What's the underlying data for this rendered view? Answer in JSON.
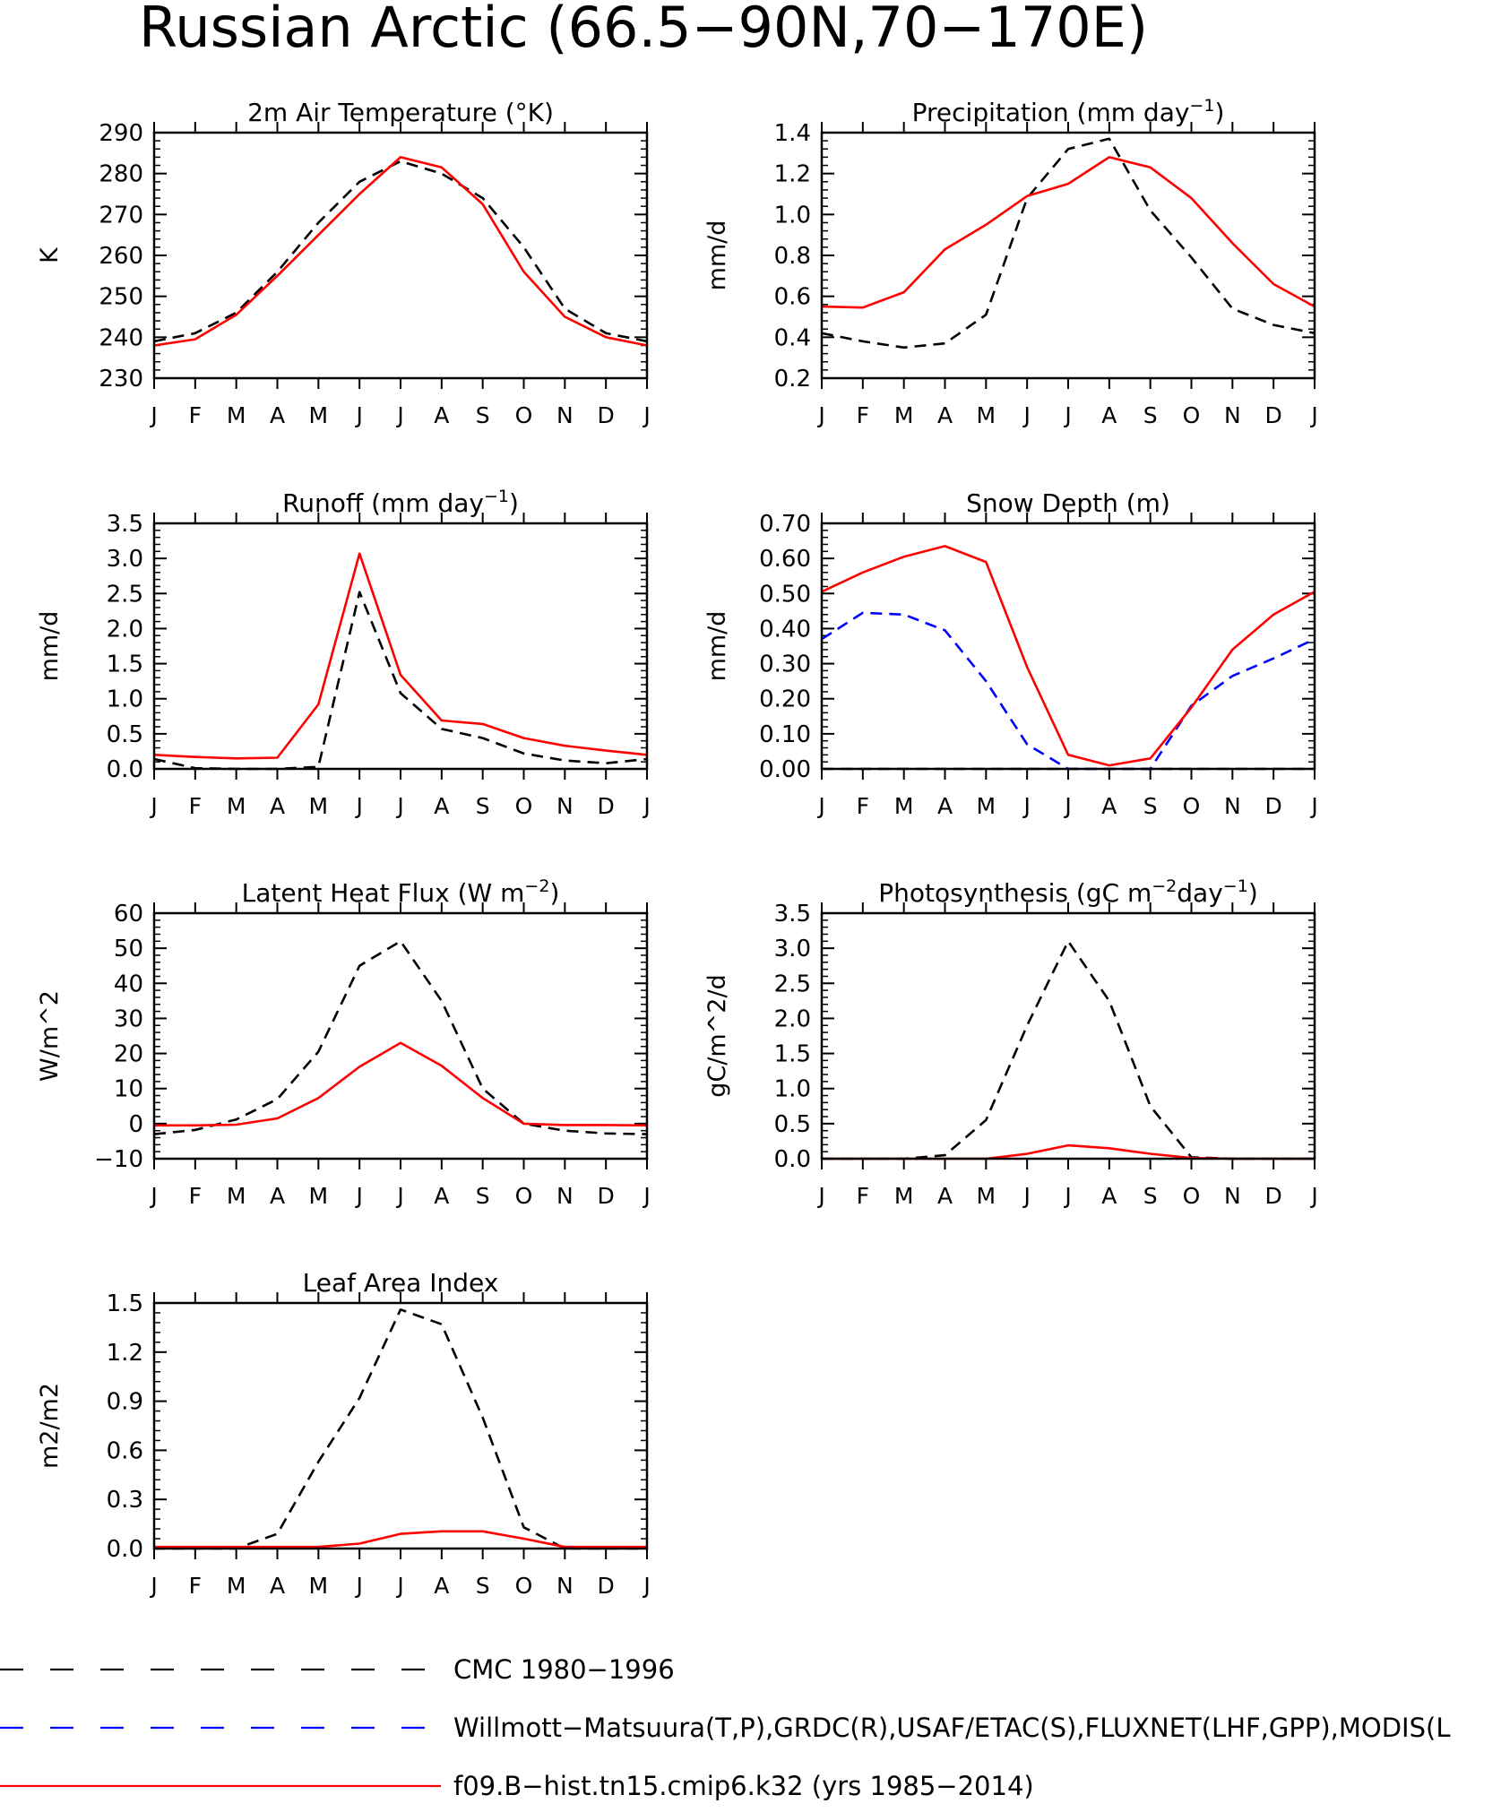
{
  "title": "Russian Arctic (66.5−90N,70−170E)",
  "months": [
    "J",
    "F",
    "M",
    "A",
    "M",
    "J",
    "J",
    "A",
    "S",
    "O",
    "N",
    "D",
    "J"
  ],
  "legend": [
    {
      "label": "CMC 1980−1996",
      "color": "#000000",
      "style": "dashed"
    },
    {
      "label": "Willmott−Matsuura(T,P),GRDC(R),USAF/ETAC(S),FLUXNET(LHF,GPP),MODIS(L",
      "color": "#0000ff",
      "style": "dashed"
    },
    {
      "label": "f09.B−hist.tn15.cmip6.k32 (yrs 1985−2014)",
      "color": "#ff0000",
      "style": "solid"
    }
  ],
  "chart_data": [
    {
      "type": "line",
      "title_main": "2m Air Temperature (°K)",
      "title_sup": "",
      "title_tail": "",
      "ylabel": "K",
      "ylim": [
        230,
        290
      ],
      "yticks": [
        230,
        240,
        250,
        260,
        270,
        280,
        290
      ],
      "ytick_labels": [
        "230",
        "240",
        "250",
        "260",
        "270",
        "280",
        "290"
      ],
      "x": [
        "J",
        "F",
        "M",
        "A",
        "M",
        "J",
        "J",
        "A",
        "S",
        "O",
        "N",
        "D",
        "J"
      ],
      "series": [
        {
          "legend_index": 0,
          "color": "#000000",
          "style": "dashed",
          "values": [
            239,
            241,
            246,
            256,
            268,
            278,
            283,
            280,
            274,
            262,
            247,
            241,
            239
          ]
        },
        {
          "legend_index": 2,
          "color": "#ff0000",
          "style": "solid",
          "values": [
            238,
            239.5,
            245.5,
            255,
            265,
            275,
            284,
            281.5,
            272.5,
            256,
            245,
            240,
            238
          ]
        }
      ]
    },
    {
      "type": "line",
      "title_main": "Precipitation (mm day",
      "title_sup": "−1",
      "title_tail": ")",
      "ylabel": "mm/d",
      "ylim": [
        0.2,
        1.4
      ],
      "yticks": [
        0.2,
        0.4,
        0.6,
        0.8,
        1.0,
        1.2,
        1.4
      ],
      "ytick_labels": [
        "0.2",
        "0.4",
        "0.6",
        "0.8",
        "1.0",
        "1.2",
        "1.4"
      ],
      "x": [
        "J",
        "F",
        "M",
        "A",
        "M",
        "J",
        "J",
        "A",
        "S",
        "O",
        "N",
        "D",
        "J"
      ],
      "series": [
        {
          "legend_index": 0,
          "color": "#000000",
          "style": "dashed",
          "values": [
            0.42,
            0.38,
            0.35,
            0.37,
            0.51,
            1.08,
            1.32,
            1.37,
            1.02,
            0.79,
            0.54,
            0.46,
            0.42
          ]
        },
        {
          "legend_index": 2,
          "color": "#ff0000",
          "style": "solid",
          "values": [
            0.55,
            0.545,
            0.62,
            0.83,
            0.95,
            1.09,
            1.15,
            1.28,
            1.23,
            1.08,
            0.86,
            0.66,
            0.55
          ]
        }
      ]
    },
    {
      "type": "line",
      "title_main": "Runoff (mm day",
      "title_sup": "−1",
      "title_tail": ")",
      "ylabel": "mm/d",
      "ylim": [
        0.0,
        3.5
      ],
      "yticks": [
        0.0,
        0.5,
        1.0,
        1.5,
        2.0,
        2.5,
        3.0,
        3.5
      ],
      "ytick_labels": [
        "0.0",
        "0.5",
        "1.0",
        "1.5",
        "2.0",
        "2.5",
        "3.0",
        "3.5"
      ],
      "x": [
        "J",
        "F",
        "M",
        "A",
        "M",
        "J",
        "J",
        "A",
        "S",
        "O",
        "N",
        "D",
        "J"
      ],
      "series": [
        {
          "legend_index": 0,
          "color": "#000000",
          "style": "dashed",
          "values": [
            0.14,
            0.01,
            0.0,
            0.0,
            0.03,
            2.52,
            1.08,
            0.57,
            0.44,
            0.22,
            0.12,
            0.08,
            0.14
          ]
        },
        {
          "legend_index": 2,
          "color": "#ff0000",
          "style": "solid",
          "values": [
            0.2,
            0.17,
            0.15,
            0.16,
            0.92,
            3.07,
            1.34,
            0.69,
            0.64,
            0.44,
            0.33,
            0.26,
            0.2
          ]
        }
      ]
    },
    {
      "type": "line",
      "title_main": "Snow Depth (m)",
      "title_sup": "",
      "title_tail": "",
      "ylabel": "mm/d",
      "ylim": [
        0.0,
        0.7
      ],
      "yticks": [
        0.0,
        0.1,
        0.2,
        0.3,
        0.4,
        0.5,
        0.6,
        0.7
      ],
      "ytick_labels": [
        "0.00",
        "0.10",
        "0.20",
        "0.30",
        "0.40",
        "0.50",
        "0.60",
        "0.70"
      ],
      "x": [
        "J",
        "F",
        "M",
        "A",
        "M",
        "J",
        "J",
        "A",
        "S",
        "O",
        "N",
        "D",
        "J"
      ],
      "series": [
        {
          "legend_index": 0,
          "color": "#000000",
          "style": "dashed",
          "values": [
            0,
            0,
            0,
            0,
            0,
            0,
            0,
            0,
            0,
            0,
            0,
            0,
            0
          ]
        },
        {
          "legend_index": 1,
          "color": "#0000ff",
          "style": "dashed",
          "values": [
            0.37,
            0.445,
            0.44,
            0.395,
            0.25,
            0.07,
            0.0,
            0.0,
            0.0,
            0.18,
            0.265,
            0.315,
            0.37
          ]
        },
        {
          "legend_index": 2,
          "color": "#ff0000",
          "style": "solid",
          "values": [
            0.505,
            0.56,
            0.605,
            0.635,
            0.59,
            0.29,
            0.04,
            0.01,
            0.03,
            0.175,
            0.34,
            0.44,
            0.505
          ]
        }
      ]
    },
    {
      "type": "line",
      "title_main": "Latent Heat Flux (W m",
      "title_sup": "−2",
      "title_tail": ")",
      "ylabel": "W/m^2",
      "ylim": [
        -10,
        60
      ],
      "yticks": [
        -10,
        0,
        10,
        20,
        30,
        40,
        50,
        60
      ],
      "ytick_labels": [
        "−10",
        "0",
        "10",
        "20",
        "30",
        "40",
        "50",
        "60"
      ],
      "x": [
        "J",
        "F",
        "M",
        "A",
        "M",
        "J",
        "J",
        "A",
        "S",
        "O",
        "N",
        "D",
        "J"
      ],
      "series": [
        {
          "legend_index": 0,
          "color": "#000000",
          "style": "dashed",
          "values": [
            -3,
            -1.8,
            1.2,
            7,
            20.5,
            45,
            52,
            35,
            10,
            0,
            -2,
            -2.8,
            -3
          ]
        },
        {
          "legend_index": 2,
          "color": "#ff0000",
          "style": "solid",
          "values": [
            -0.5,
            -0.5,
            -0.3,
            1.5,
            7.3,
            16.2,
            23,
            16.5,
            7.3,
            0,
            -0.4,
            -0.4,
            -0.5
          ]
        }
      ]
    },
    {
      "type": "line",
      "title_main": "Photosynthesis (gC m",
      "title_sup": "−2",
      "title_tail": "day",
      "title_sup2": "−1",
      "title_tail2": ")",
      "ylabel": "gC/m^2/d",
      "ylim": [
        0.0,
        3.5
      ],
      "yticks": [
        0.0,
        0.5,
        1.0,
        1.5,
        2.0,
        2.5,
        3.0,
        3.5
      ],
      "ytick_labels": [
        "0.0",
        "0.5",
        "1.0",
        "1.5",
        "2.0",
        "2.5",
        "3.0",
        "3.5"
      ],
      "x": [
        "J",
        "F",
        "M",
        "A",
        "M",
        "J",
        "J",
        "A",
        "S",
        "O",
        "N",
        "D",
        "J"
      ],
      "series": [
        {
          "legend_index": 0,
          "color": "#000000",
          "style": "dashed",
          "values": [
            0,
            0,
            0,
            0.05,
            0.55,
            1.9,
            3.1,
            2.25,
            0.75,
            0.02,
            0,
            0,
            0
          ]
        },
        {
          "legend_index": 2,
          "color": "#ff0000",
          "style": "solid",
          "values": [
            0,
            0,
            0,
            0,
            0,
            0.07,
            0.19,
            0.15,
            0.07,
            0.01,
            0,
            0,
            0
          ]
        }
      ]
    },
    {
      "type": "line",
      "title_main": "Leaf Area Index",
      "title_sup": "",
      "title_tail": "",
      "ylabel": "m2/m2",
      "ylim": [
        0.0,
        1.5
      ],
      "yticks": [
        0.0,
        0.3,
        0.6,
        0.9,
        1.2,
        1.5
      ],
      "ytick_labels": [
        "0.0",
        "0.3",
        "0.6",
        "0.9",
        "1.2",
        "1.5"
      ],
      "x": [
        "J",
        "F",
        "M",
        "A",
        "M",
        "J",
        "J",
        "A",
        "S",
        "O",
        "N",
        "D",
        "J"
      ],
      "series": [
        {
          "legend_index": 0,
          "color": "#000000",
          "style": "dashed",
          "values": [
            0,
            0,
            0,
            0.09,
            0.53,
            0.92,
            1.46,
            1.37,
            0.8,
            0.13,
            0,
            0,
            0
          ]
        },
        {
          "legend_index": 2,
          "color": "#ff0000",
          "style": "solid",
          "values": [
            0.01,
            0.01,
            0.01,
            0.01,
            0.01,
            0.03,
            0.09,
            0.105,
            0.105,
            0.06,
            0.01,
            0.01,
            0.01
          ]
        }
      ]
    }
  ]
}
